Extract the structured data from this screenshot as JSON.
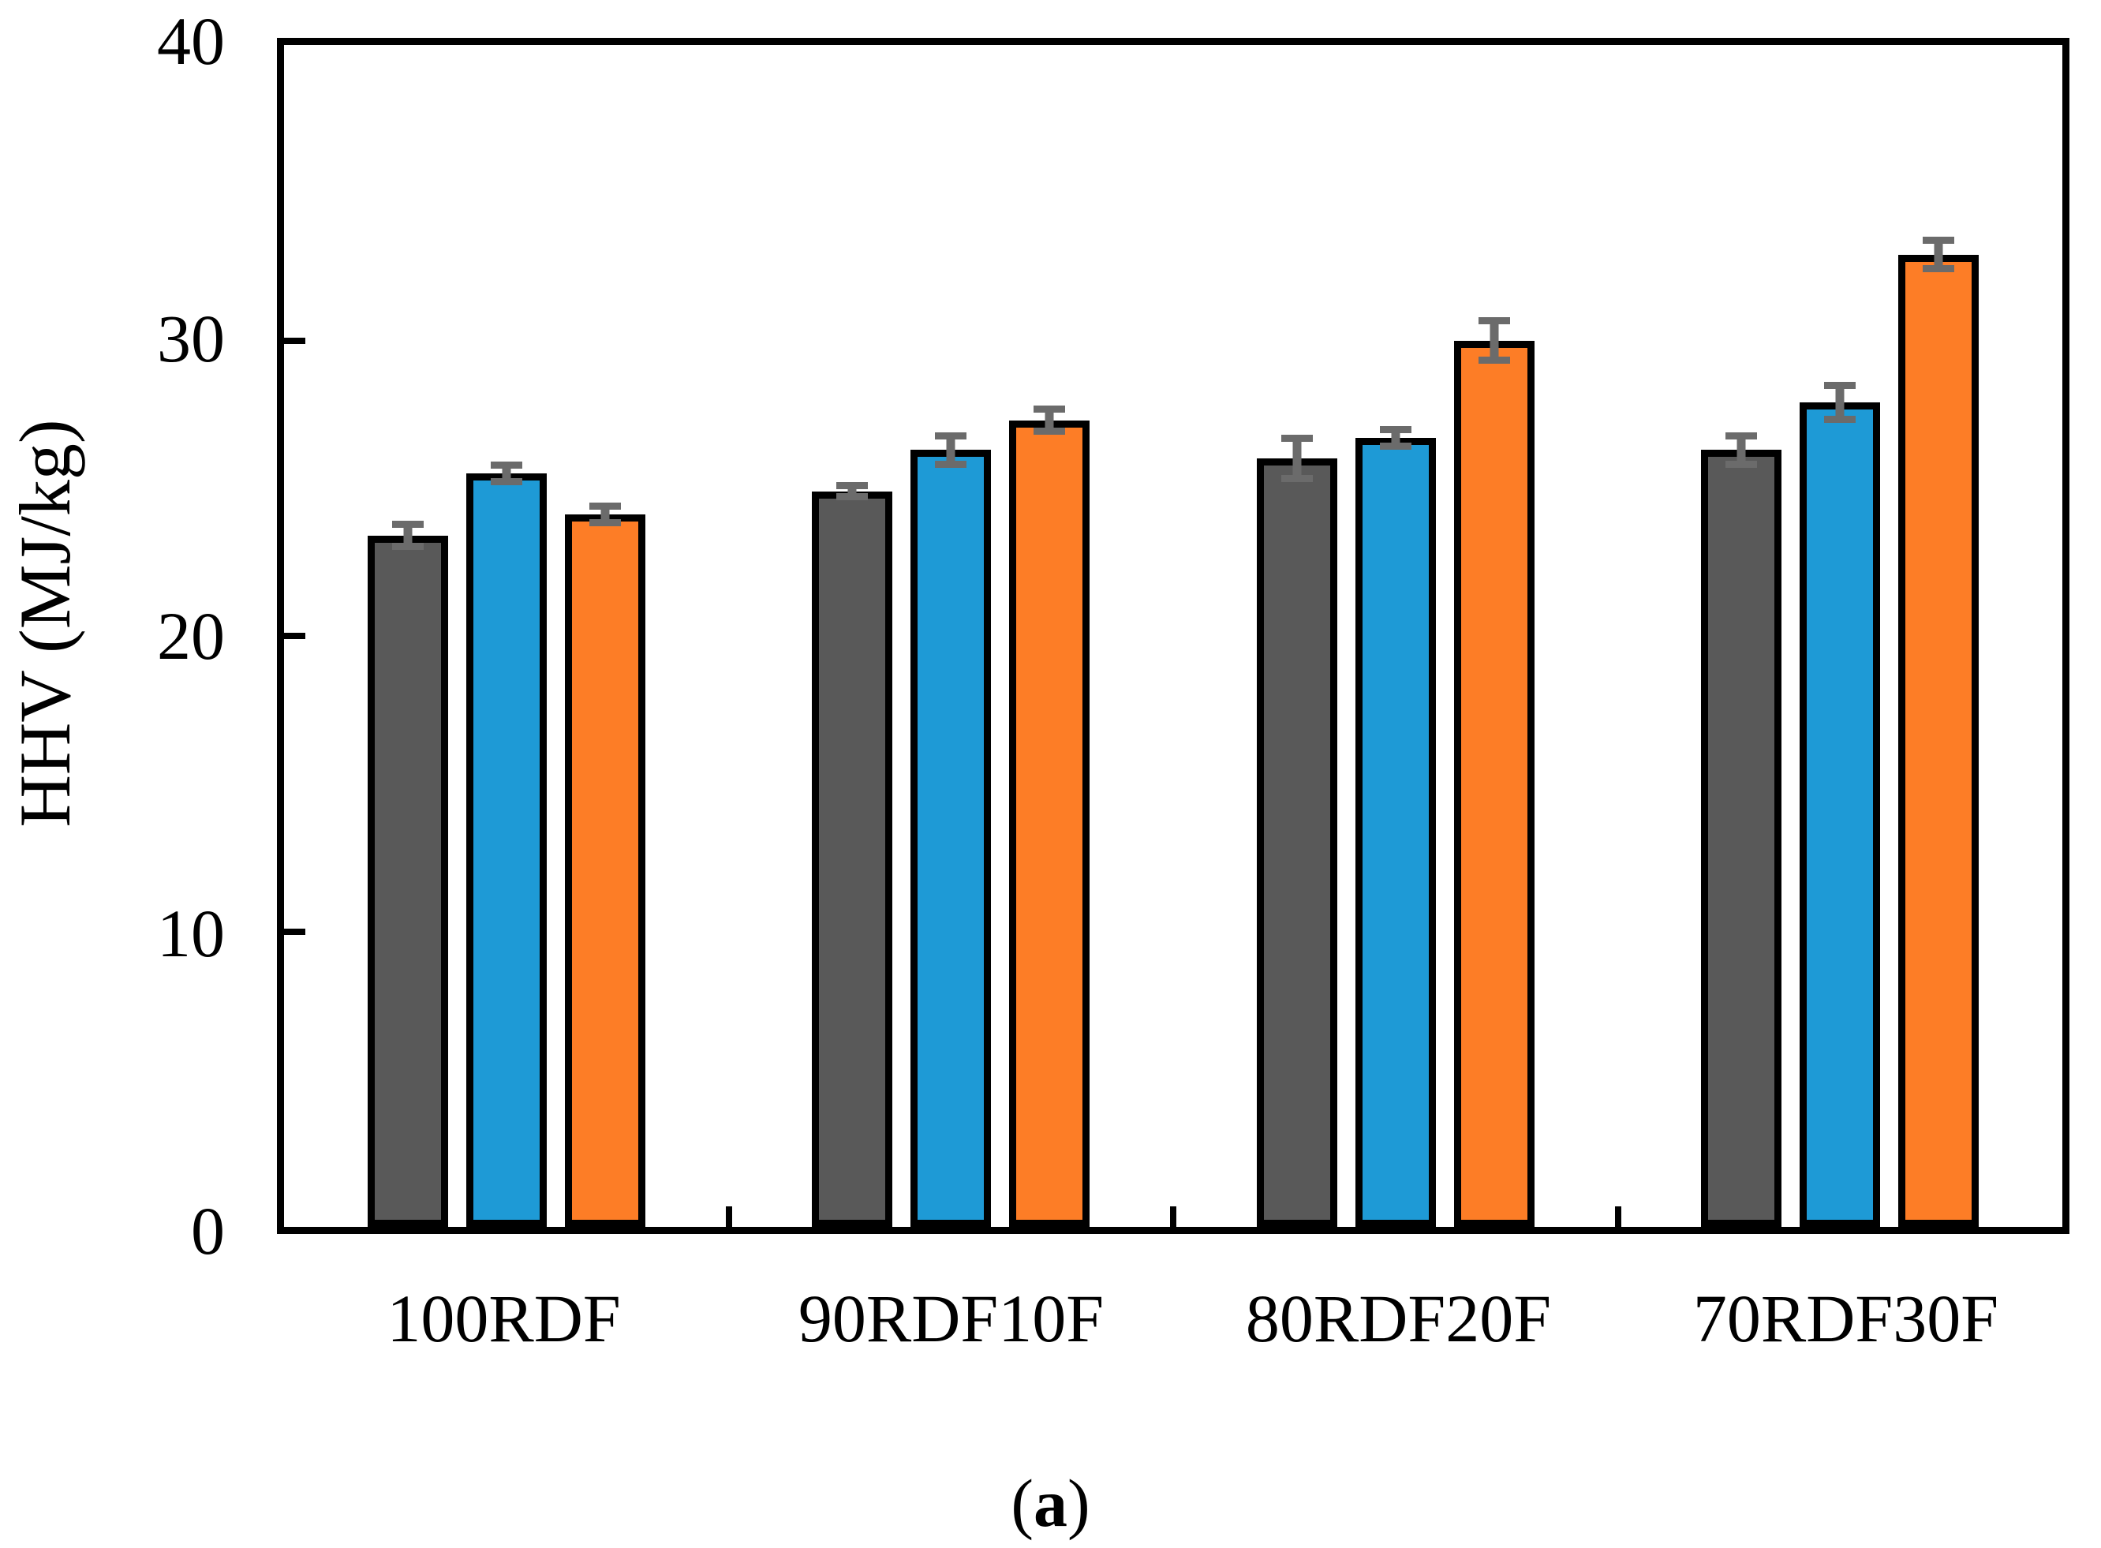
{
  "figure": {
    "caption_prefix": "(",
    "caption_letter": "a",
    "caption_suffix": ")"
  },
  "chart_data": {
    "type": "bar",
    "title": "",
    "xlabel": "",
    "ylabel": "HHV (MJ/kg)",
    "ylim": [
      0,
      40
    ],
    "yticks": [
      "40",
      "30",
      "20",
      "10",
      "0"
    ],
    "grid": false,
    "legend_position": "none",
    "categories": [
      "100RDF",
      "90RDF10F",
      "80RDF20F",
      "70RDF30F"
    ],
    "series": [
      {
        "name": "dark-gray-series",
        "color": "#595959",
        "values": [
          23.4,
          24.9,
          26.0,
          26.3
        ],
        "errors": [
          0.5,
          0.3,
          0.8,
          0.6
        ]
      },
      {
        "name": "blue-series",
        "color": "#1E9AD6",
        "values": [
          25.5,
          26.3,
          26.7,
          27.9
        ],
        "errors": [
          0.4,
          0.6,
          0.4,
          0.7
        ]
      },
      {
        "name": "orange-series",
        "color": "#FD7D26",
        "values": [
          24.1,
          27.3,
          30.0,
          32.9
        ],
        "errors": [
          0.4,
          0.5,
          0.8,
          0.6
        ]
      }
    ],
    "error_bar_color": "#6B6B6B",
    "bar_border_color": "#000000",
    "frame_color": "#000000"
  }
}
